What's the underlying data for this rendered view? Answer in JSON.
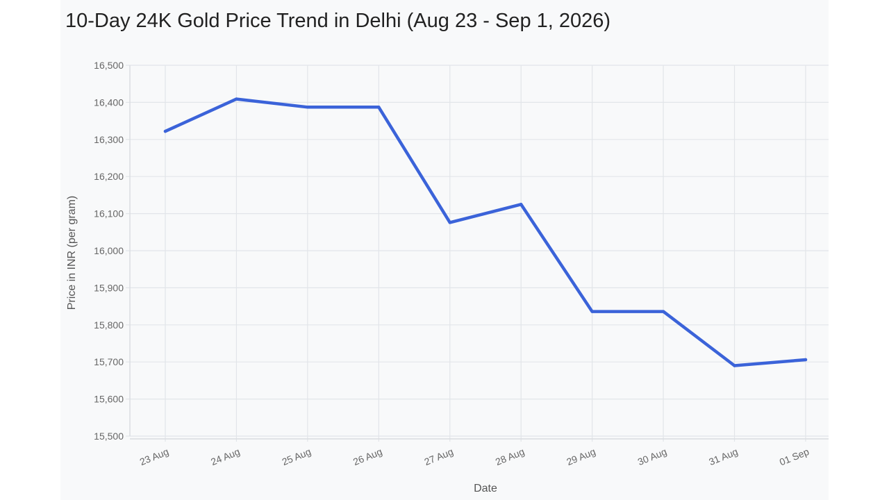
{
  "chart_data": {
    "type": "line",
    "title": "10-Day 24K Gold Price Trend in Delhi (Aug 23 - Sep 1, 2026)",
    "xlabel": "Date",
    "ylabel": "Price in INR (per gram)",
    "categories": [
      "23 Aug",
      "24 Aug",
      "25 Aug",
      "26 Aug",
      "27 Aug",
      "28 Aug",
      "29 Aug",
      "30 Aug",
      "31 Aug",
      "01 Sep"
    ],
    "series": [
      {
        "values": [
          16322,
          16409,
          16387,
          16387,
          16076,
          16125,
          15836,
          15836,
          15690,
          15706
        ]
      }
    ],
    "ylim": [
      15500,
      16500
    ],
    "yticks": [
      "16,500",
      "16,400",
      "16,300",
      "16,200",
      "16,100",
      "16,000",
      "15,900",
      "15,800",
      "15,700",
      "15,600",
      "15,500"
    ],
    "ytick_values": [
      16500,
      16400,
      16300,
      16200,
      16100,
      16000,
      15900,
      15800,
      15700,
      15600,
      15500
    ],
    "grid": true,
    "legend": "none",
    "colors": {
      "line": "#3b63d9",
      "background": "#f8f9fa",
      "grid": "#e2e5e9"
    }
  }
}
